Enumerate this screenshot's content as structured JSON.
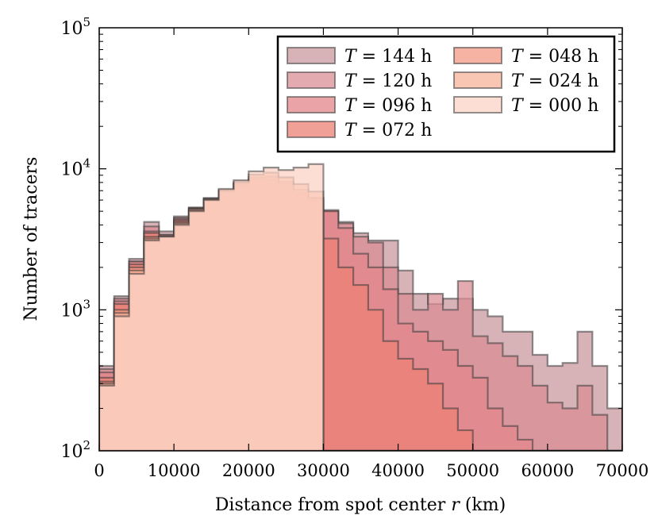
{
  "chart_data": {
    "type": "bar",
    "chart_style": "step histogram, overlaid",
    "xlabel": "Distance from spot center",
    "xlabel_var": "r",
    "xlabel_unit": "(km)",
    "ylabel": "Number of tracers",
    "xlim": [
      0,
      70000
    ],
    "ylim": [
      100,
      100000
    ],
    "yscale": "log",
    "grid": false,
    "legend_position": "top-right",
    "legend_ncol": 2,
    "xticks": [
      0,
      10000,
      20000,
      30000,
      40000,
      50000,
      60000,
      70000
    ],
    "xtick_labels": [
      "0",
      "10000",
      "20000",
      "30000",
      "40000",
      "50000",
      "60000",
      "70000"
    ],
    "yticks": [
      100,
      1000,
      10000,
      100000
    ],
    "ytick_labels": [
      {
        "base": "10",
        "exp": "2"
      },
      {
        "base": "10",
        "exp": "3"
      },
      {
        "base": "10",
        "exp": "4"
      },
      {
        "base": "10",
        "exp": "5"
      }
    ],
    "bin_edges": [
      0,
      2000,
      4000,
      6000,
      8000,
      10000,
      12000,
      14000,
      16000,
      18000,
      20000,
      22000,
      24000,
      26000,
      28000,
      30000,
      32000,
      34000,
      36000,
      38000,
      40000,
      42000,
      44000,
      46000,
      48000,
      50000,
      52000,
      54000,
      56000,
      58000,
      60000,
      62000,
      64000,
      66000,
      68000,
      70000
    ],
    "series": [
      {
        "name": "T = 144 h",
        "var": "T",
        "label": "= 144 h",
        "color": "#c99aa0",
        "values": [
          400,
          1250,
          2300,
          4200,
          3600,
          4600,
          5300,
          6100,
          7000,
          7900,
          8300,
          8000,
          7600,
          6500,
          6000,
          5000,
          4200,
          3500,
          3100,
          3100,
          1900,
          1300,
          1100,
          1200,
          1200,
          1000,
          900,
          700,
          700,
          480,
          400,
          420,
          700,
          400,
          200
        ]
      },
      {
        "name": "T = 120 h",
        "var": "T",
        "label": "= 120 h",
        "color": "#d98e94",
        "values": [
          380,
          1200,
          2200,
          3900,
          3400,
          4500,
          5300,
          6200,
          7000,
          7900,
          8300,
          8100,
          7600,
          6600,
          6200,
          5100,
          4100,
          3300,
          3000,
          2000,
          1300,
          1000,
          1300,
          1000,
          1600,
          650,
          580,
          470,
          400,
          290,
          220,
          200,
          290,
          180,
          100
        ]
      },
      {
        "name": "T = 096 h",
        "var": "T",
        "label": "= 096 h",
        "color": "#e3868b",
        "values": [
          360,
          1150,
          2200,
          3600,
          3400,
          4400,
          5300,
          6200,
          7000,
          7900,
          8400,
          8300,
          7700,
          6700,
          6200,
          5000,
          3800,
          2500,
          2000,
          1400,
          800,
          700,
          600,
          520,
          400,
          330,
          200,
          150,
          120,
          100,
          100,
          100,
          100,
          100,
          100
        ]
      },
      {
        "name": "T = 072 h",
        "var": "T",
        "label": "= 072 h",
        "color": "#ec8074",
        "values": [
          330,
          1100,
          2100,
          3500,
          3300,
          4300,
          5200,
          6100,
          6900,
          7700,
          8300,
          8400,
          7800,
          6700,
          5900,
          3200,
          2000,
          1500,
          1000,
          600,
          450,
          380,
          300,
          200,
          140,
          100,
          100,
          100,
          100,
          100,
          100,
          100,
          100,
          100,
          100
        ]
      },
      {
        "name": "T = 048 h",
        "var": "T",
        "label": "= 048 h",
        "color": "#f39a84",
        "values": [
          310,
          1000,
          2000,
          3300,
          3300,
          4200,
          5200,
          6100,
          6900,
          7900,
          8700,
          8800,
          8100,
          7100,
          6200,
          100,
          100,
          100,
          100,
          100,
          100,
          100,
          100,
          100,
          100,
          100,
          100,
          100,
          100,
          100,
          100,
          100,
          100,
          100,
          100
        ]
      },
      {
        "name": "T = 024 h",
        "var": "T",
        "label": "= 024 h",
        "color": "#f7b39b",
        "values": [
          300,
          950,
          1900,
          3200,
          3300,
          4100,
          5100,
          6100,
          7100,
          8100,
          9100,
          9400,
          8700,
          7800,
          6900,
          100,
          100,
          100,
          100,
          100,
          100,
          100,
          100,
          100,
          100,
          100,
          100,
          100,
          100,
          100,
          100,
          100,
          100,
          100,
          100
        ]
      },
      {
        "name": "T = 000 h",
        "var": "T",
        "label": "= 000 h",
        "color": "#fbd3c6",
        "values": [
          290,
          900,
          1800,
          3100,
          3300,
          4000,
          5000,
          6000,
          7200,
          8300,
          9600,
          10200,
          9800,
          10200,
          10800,
          100,
          100,
          100,
          100,
          100,
          100,
          100,
          100,
          100,
          100,
          100,
          100,
          100,
          100,
          100,
          100,
          100,
          100,
          100,
          100
        ]
      }
    ]
  }
}
